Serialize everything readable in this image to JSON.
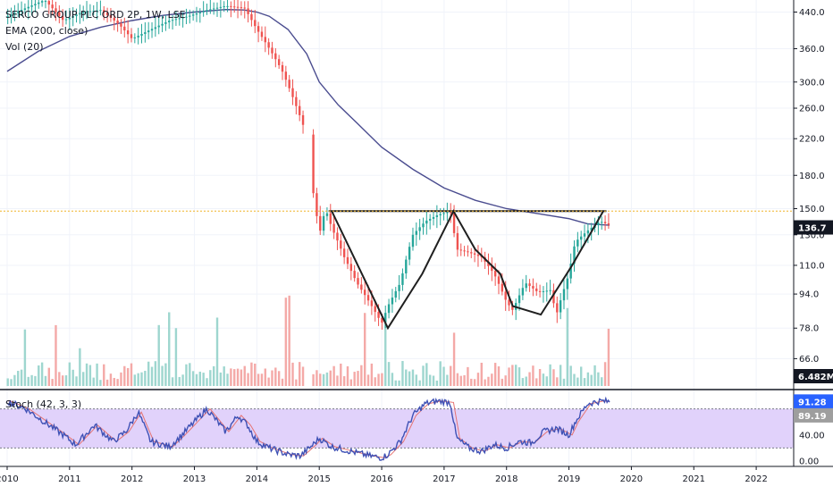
{
  "legend": {
    "symbol": "SERCO GROUP PLC ORD 2P, 1W, LSE",
    "ema": "EMA (200, close)",
    "vol": "Vol (20)",
    "stoch": "Stoch (42, 3, 3)"
  },
  "colors": {
    "up": "#26a69a",
    "down": "#ef5350",
    "vol_up": "#9ed6cf",
    "vol_down": "#f4a9a7",
    "ema": "#4a4c8f",
    "pattern": "#1f1f1f",
    "stoch_k": "#3f51b5",
    "stoch_d": "#e57373",
    "stoch_band": "#e1d2fb",
    "resistance": "#f0b429",
    "price_tag": "#131722",
    "stoch_tag_k": "#2962ff",
    "stoch_tag_d": "#9e9e9e"
  },
  "chart_data": [
    {
      "type": "line",
      "title": "SERCO GROUP PLC ORD 2P, 1W, LSE",
      "y_scale": "log",
      "ylim": [
        56,
        470
      ],
      "xlim": [
        2010.0,
        2022.6
      ],
      "x_tick_labels": [
        "2010",
        "2011",
        "2012",
        "2013",
        "2014",
        "2015",
        "2016",
        "2017",
        "2018",
        "2019",
        "2020",
        "2021",
        "2022"
      ],
      "y_tick_labels": [
        "440.0",
        "360.0",
        "300.0",
        "260.0",
        "220.0",
        "180.0",
        "150.0",
        "130.0",
        "110.0",
        "94.0",
        "78.0",
        "66.0"
      ],
      "last_price_label": "136.7",
      "resistance_level": 148,
      "series": [
        {
          "name": "price",
          "x": [
            2010.0,
            2010.3,
            2010.6,
            2010.9,
            2011.2,
            2011.5,
            2011.8,
            2012.0,
            2012.3,
            2012.6,
            2012.9,
            2013.2,
            2013.5,
            2013.8,
            2014.0,
            2014.2,
            2014.4,
            2014.6,
            2014.75,
            2014.85,
            2014.9,
            2015.0,
            2015.1,
            2015.2,
            2015.4,
            2015.6,
            2015.8,
            2016.0,
            2016.1,
            2016.3,
            2016.5,
            2016.7,
            2016.9,
            2017.1,
            2017.2,
            2017.4,
            2017.6,
            2017.8,
            2018.0,
            2018.1,
            2018.3,
            2018.5,
            2018.7,
            2018.8,
            2019.0,
            2019.1,
            2019.3,
            2019.5,
            2019.65
          ],
          "values": [
            430,
            450,
            470,
            420,
            440,
            445,
            410,
            380,
            400,
            420,
            430,
            445,
            455,
            450,
            400,
            360,
            320,
            270,
            235,
            225,
            165,
            130,
            150,
            135,
            115,
            100,
            90,
            80,
            88,
            100,
            130,
            140,
            145,
            148,
            120,
            118,
            115,
            105,
            90,
            86,
            100,
            95,
            96,
            84,
            105,
            125,
            133,
            140,
            137
          ]
        },
        {
          "name": "EMA (200, close)",
          "x": [
            2010.0,
            2010.5,
            2011.0,
            2011.5,
            2012.0,
            2012.5,
            2013.0,
            2013.5,
            2013.8,
            2014.0,
            2014.2,
            2014.5,
            2014.8,
            2015.0,
            2015.3,
            2015.6,
            2016.0,
            2016.5,
            2017.0,
            2017.5,
            2018.0,
            2018.5,
            2019.0,
            2019.3,
            2019.65
          ],
          "values": [
            318,
            355,
            385,
            405,
            420,
            432,
            440,
            446,
            445,
            440,
            430,
            400,
            350,
            300,
            265,
            240,
            210,
            186,
            168,
            157,
            150,
            146,
            142,
            138,
            137
          ]
        }
      ],
      "pattern_points": {
        "x": [
          2015.2,
          2016.1,
          2016.65,
          2017.15,
          2017.5,
          2017.9,
          2018.1,
          2018.55,
          2019.05,
          2019.55
        ],
        "values": [
          148,
          78,
          105,
          148,
          120,
          105,
          88,
          84,
          110,
          148
        ]
      }
    },
    {
      "type": "bar",
      "title": "Vol (20)",
      "last_value_label": "6.482M"
    },
    {
      "type": "line",
      "title": "Stoch (42, 3, 3)",
      "ylim": [
        0,
        100
      ],
      "y_tick_labels": [
        "80.00",
        "40.00",
        "0.00"
      ],
      "band": [
        20,
        80
      ],
      "k_label": "91.28",
      "d_label": "89.19",
      "series": [
        {
          "name": "%K",
          "x": [
            2010.0,
            2010.3,
            2010.6,
            2010.9,
            2011.1,
            2011.4,
            2011.7,
            2011.9,
            2012.1,
            2012.3,
            2012.6,
            2012.8,
            2013.0,
            2013.2,
            2013.5,
            2013.7,
            2013.85,
            2014.0,
            2014.2,
            2014.5,
            2014.7,
            2014.9,
            2015.0,
            2015.2,
            2015.5,
            2015.8,
            2016.0,
            2016.1,
            2016.3,
            2016.5,
            2016.7,
            2016.9,
            2017.1,
            2017.2,
            2017.4,
            2017.6,
            2017.8,
            2018.0,
            2018.2,
            2018.4,
            2018.6,
            2018.8,
            2019.0,
            2019.1,
            2019.3,
            2019.5,
            2019.65
          ],
          "values": [
            92,
            80,
            60,
            40,
            25,
            55,
            30,
            45,
            75,
            30,
            22,
            40,
            60,
            80,
            45,
            70,
            55,
            30,
            20,
            10,
            8,
            25,
            35,
            22,
            15,
            8,
            5,
            10,
            30,
            70,
            88,
            92,
            90,
            35,
            20,
            15,
            25,
            20,
            30,
            28,
            45,
            50,
            40,
            60,
            88,
            92,
            91
          ]
        }
      ]
    }
  ]
}
